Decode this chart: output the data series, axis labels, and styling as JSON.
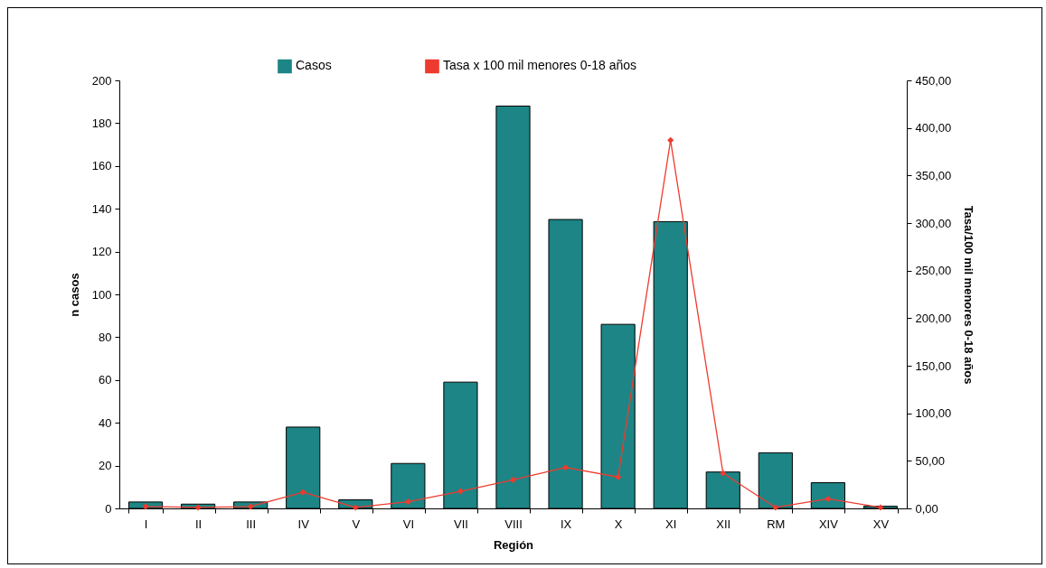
{
  "chart_data": {
    "type": "bar",
    "xlabel": "Región",
    "ylabel": "n casos",
    "y2label": "Tasa/100 mil menores 0-18 años",
    "categories": [
      "I",
      "II",
      "III",
      "IV",
      "V",
      "VI",
      "VII",
      "VIII",
      "IX",
      "X",
      "XI",
      "XII",
      "RM",
      "XIV",
      "XV"
    ],
    "series": [
      {
        "name": "Casos",
        "color": "#1d8585",
        "values": [
          3,
          2,
          3,
          38,
          4,
          21,
          59,
          188,
          135,
          86,
          134,
          17,
          26,
          12,
          1
        ]
      },
      {
        "name": "Tasa x 100 mil menores 0-18 años",
        "type": "line",
        "axis": "y2",
        "color": "#ee3b2f",
        "values": [
          2,
          1,
          2,
          17,
          1,
          7,
          18,
          30,
          43,
          33,
          387,
          37,
          1,
          10,
          1
        ]
      }
    ],
    "ylim": [
      0,
      200
    ],
    "yticks": [
      0,
      20,
      40,
      60,
      80,
      100,
      120,
      140,
      160,
      180,
      200
    ],
    "y2lim": [
      0,
      450
    ],
    "y2ticks": [
      {
        "value": 0,
        "label": "0,00"
      },
      {
        "value": 50,
        "label": "50,00"
      },
      {
        "value": 100,
        "label": "100,00"
      },
      {
        "value": 150,
        "label": "150,00"
      },
      {
        "value": 200,
        "label": "200,00"
      },
      {
        "value": 250,
        "label": "250,00"
      },
      {
        "value": 300,
        "label": "300,00"
      },
      {
        "value": 350,
        "label": "350,00"
      },
      {
        "value": 400,
        "label": "400,00"
      },
      {
        "value": 450,
        "label": "450,00"
      }
    ],
    "grid": false,
    "legend": "top",
    "marker": "diamond",
    "line_style": "solid"
  }
}
